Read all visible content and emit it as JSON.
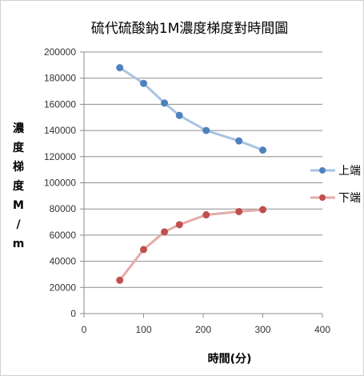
{
  "chart_data": {
    "type": "line",
    "title": "硫代硫酸鈉1M濃度梯度對時間圖",
    "xlabel": "時間(分)",
    "ylabel": "濃度梯度M/m",
    "xlim": [
      0,
      400
    ],
    "ylim": [
      0,
      200000
    ],
    "x_ticks": [
      "0",
      "100",
      "200",
      "300",
      "400"
    ],
    "y_ticks": [
      "0",
      "20000",
      "40000",
      "60000",
      "80000",
      "100000",
      "120000",
      "140000",
      "160000",
      "180000",
      "200000"
    ],
    "grid": "horizontal",
    "legend_position": "right",
    "series": [
      {
        "name": "上端",
        "color": "#4f81bd",
        "line_color": "#a9c3e3",
        "points": [
          [
            60,
            188000
          ],
          [
            100,
            176000
          ],
          [
            135,
            161000
          ],
          [
            160,
            151500
          ],
          [
            205,
            140000
          ],
          [
            260,
            132000
          ],
          [
            300,
            125000
          ]
        ]
      },
      {
        "name": "下端",
        "color": "#c0504d",
        "line_color": "#e6a9a7",
        "points": [
          [
            60,
            25500
          ],
          [
            100,
            49000
          ],
          [
            135,
            62500
          ],
          [
            160,
            68000
          ],
          [
            205,
            75500
          ],
          [
            260,
            78000
          ],
          [
            300,
            79500
          ]
        ]
      }
    ]
  }
}
